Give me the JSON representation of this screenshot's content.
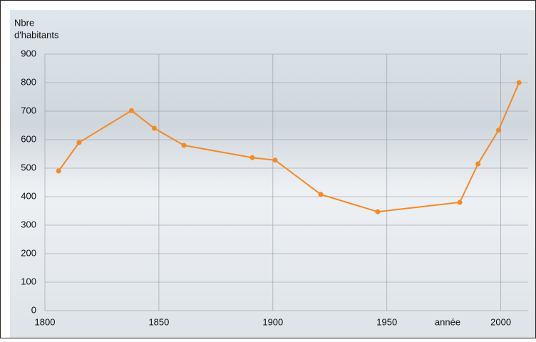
{
  "chart_data": {
    "type": "line",
    "ylabel": [
      "Nbre",
      "d'habitants"
    ],
    "xlabel": "année",
    "x": [
      1806,
      1815,
      1838,
      1848,
      1861,
      1891,
      1901,
      1921,
      1946,
      1982,
      1990,
      1999,
      2008
    ],
    "series": [
      {
        "color": "#f28a26",
        "values": [
          490,
          590,
          702,
          640,
          580,
          537,
          528,
          408,
          347,
          380,
          515,
          633,
          800
        ]
      }
    ],
    "xlim": [
      1800,
      2012
    ],
    "xticks": [
      1800,
      1850,
      1900,
      1950,
      2000
    ],
    "ylim": [
      0,
      900
    ],
    "yticks": [
      0,
      100,
      200,
      300,
      400,
      500,
      600,
      700,
      800,
      900
    ],
    "grid": true
  }
}
